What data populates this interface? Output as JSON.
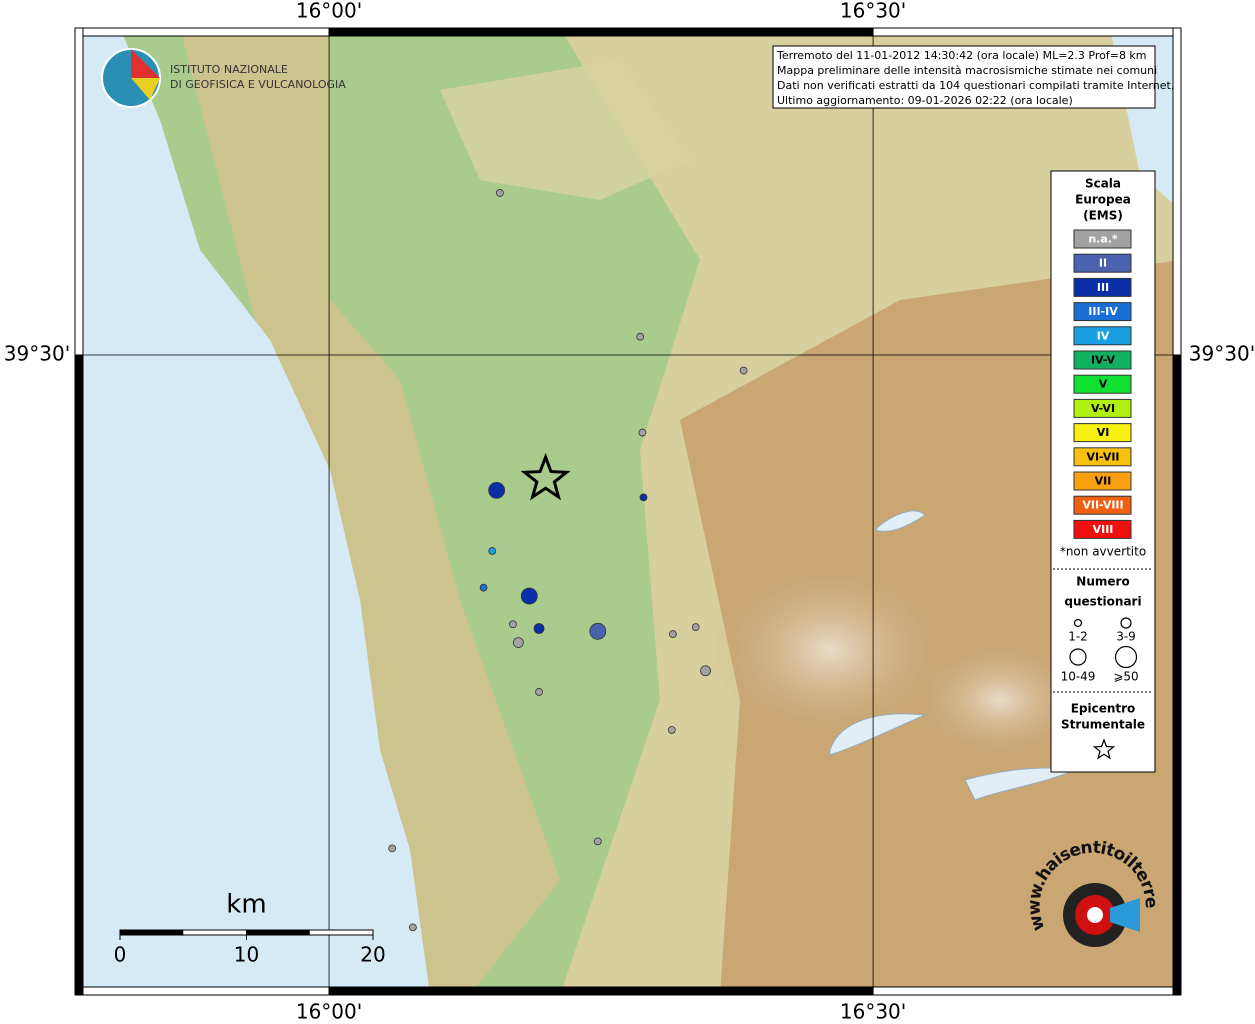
{
  "chart_data": {
    "type": "map",
    "xlim": [
      15.7665,
      16.783
    ],
    "ylim": [
      39.046,
      39.732
    ],
    "xticks": [
      {
        "value": 16,
        "label": "16°00'"
      },
      {
        "value": 16.5,
        "label": "16°30'"
      }
    ],
    "yticks": [
      {
        "value": 39.5,
        "label": "39°30'"
      }
    ],
    "logo": [
      "ISTITUTO NAZIONALE",
      "DI GEOFISICA E VULCANOLOGIA"
    ],
    "info": [
      "Terremoto del 11-01-2012 14:30:42 (ora locale) ML=2.3 Prof=8 km",
      "Mappa preliminare delle intensità macrosismiche stimate nei comuni",
      "Dati non verificati estratti da 104 questionari compilati tramite Internet.",
      "Ultimo aggiornamento: 09-01-2026 02:22 (ora locale)"
    ],
    "legend": {
      "title": [
        "Scala",
        "Europea",
        "(EMS)"
      ],
      "classes": [
        {
          "name": "n.a.*",
          "color": "#a2a2a2",
          "label_color": "#ffffff"
        },
        {
          "name": "II",
          "color": "#4a62b0",
          "label_color": "#ffffff"
        },
        {
          "name": "III",
          "color": "#0b2fa8",
          "label_color": "#ffffff"
        },
        {
          "name": "III-IV",
          "color": "#1a6fd4",
          "label_color": "#ffffff"
        },
        {
          "name": "IV",
          "color": "#1aa0e0",
          "label_color": "#ffffff"
        },
        {
          "name": "IV-V",
          "color": "#10b060",
          "label_color": "#000000"
        },
        {
          "name": "V",
          "color": "#10e030",
          "label_color": "#000000"
        },
        {
          "name": "V-VI",
          "color": "#b0f010",
          "label_color": "#000000"
        },
        {
          "name": "VI",
          "color": "#f8f010",
          "label_color": "#000000"
        },
        {
          "name": "VI-VII",
          "color": "#f8c010",
          "label_color": "#000000"
        },
        {
          "name": "VII",
          "color": "#f8a010",
          "label_color": "#000000"
        },
        {
          "name": "VII-VIII",
          "color": "#f06010",
          "label_color": "#ffffff"
        },
        {
          "name": "VIII",
          "color": "#f01010",
          "label_color": "#ffffff"
        }
      ],
      "note": "*non avvertito",
      "size_title": [
        "Numero",
        "questionari"
      ],
      "sizes": [
        "1-2",
        "3-9",
        "10-49",
        "⩾50"
      ],
      "epicenter_title": [
        "Epicentro",
        "Strumentale"
      ]
    },
    "epicenter": {
      "lon": 16.199,
      "lat": 39.412
    },
    "points": [
      {
        "lon": 16.157,
        "lat": 39.615,
        "intensity": "n.a.*",
        "size": "1-2"
      },
      {
        "lon": 16.286,
        "lat": 39.513,
        "intensity": "n.a.*",
        "size": "1-2"
      },
      {
        "lon": 16.381,
        "lat": 39.489,
        "intensity": "n.a.*",
        "size": "1-2"
      },
      {
        "lon": 16.288,
        "lat": 39.445,
        "intensity": "n.a.*",
        "size": "1-2"
      },
      {
        "lon": 16.154,
        "lat": 39.404,
        "intensity": "III",
        "size": "10-49"
      },
      {
        "lon": 16.289,
        "lat": 39.399,
        "intensity": "III",
        "size": "1-2"
      },
      {
        "lon": 16.15,
        "lat": 39.361,
        "intensity": "IV",
        "size": "1-2"
      },
      {
        "lon": 16.142,
        "lat": 39.335,
        "intensity": "III-IV",
        "size": "1-2"
      },
      {
        "lon": 16.184,
        "lat": 39.329,
        "intensity": "III",
        "size": "10-49"
      },
      {
        "lon": 16.169,
        "lat": 39.309,
        "intensity": "n.a.*",
        "size": "1-2"
      },
      {
        "lon": 16.193,
        "lat": 39.306,
        "intensity": "III",
        "size": "3-9"
      },
      {
        "lon": 16.247,
        "lat": 39.304,
        "intensity": "II",
        "size": "10-49"
      },
      {
        "lon": 16.174,
        "lat": 39.296,
        "intensity": "n.a.*",
        "size": "3-9"
      },
      {
        "lon": 16.316,
        "lat": 39.302,
        "intensity": "n.a.*",
        "size": "1-2"
      },
      {
        "lon": 16.337,
        "lat": 39.307,
        "intensity": "n.a.*",
        "size": "1-2"
      },
      {
        "lon": 16.346,
        "lat": 39.276,
        "intensity": "n.a.*",
        "size": "3-9"
      },
      {
        "lon": 16.193,
        "lat": 39.261,
        "intensity": "n.a.*",
        "size": "1-2"
      },
      {
        "lon": 16.315,
        "lat": 39.234,
        "intensity": "n.a.*",
        "size": "1-2"
      },
      {
        "lon": 16.247,
        "lat": 39.155,
        "intensity": "n.a.*",
        "size": "1-2"
      },
      {
        "lon": 16.058,
        "lat": 39.15,
        "intensity": "n.a.*",
        "size": "1-2"
      },
      {
        "lon": 16.077,
        "lat": 39.094,
        "intensity": "n.a.*",
        "size": "1-2"
      }
    ],
    "scale_bar": {
      "unit": "km",
      "ticks": [
        0,
        10,
        20
      ]
    },
    "site": "www.haisentitoilterremoto.it"
  }
}
